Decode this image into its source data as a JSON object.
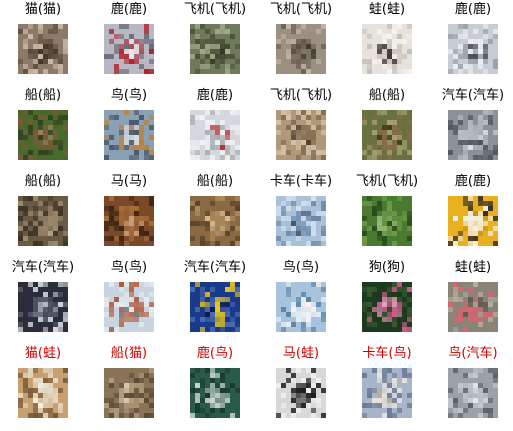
{
  "title": "",
  "colors": {
    "correct": "#000000",
    "wrong": "#d40000"
  },
  "rows": [
    [
      {
        "label": "猫(猫)",
        "correct": true,
        "subject": "cat",
        "palette": [
          "#8c7a68",
          "#5a4a3c",
          "#c9b8a4",
          "#3d3028"
        ]
      },
      {
        "label": "鹿(鹿)",
        "correct": true,
        "subject": "red truck",
        "palette": [
          "#b8b8c4",
          "#b0242e",
          "#6b6b78",
          "#e8e8ee"
        ]
      },
      {
        "label": "飞机(飞机)",
        "correct": true,
        "subject": "frog",
        "palette": [
          "#6e7a5a",
          "#4a5238",
          "#a8ac8c",
          "#2c301e"
        ]
      },
      {
        "label": "飞机(飞机)",
        "correct": true,
        "subject": "frog",
        "palette": [
          "#9c9080",
          "#6c6254",
          "#c4b8a8",
          "#3a342c"
        ]
      },
      {
        "label": "蛙(蛙)",
        "correct": true,
        "subject": "white dog",
        "palette": [
          "#e6e2dc",
          "#c8c0b8",
          "#f6f4f0",
          "#2a2420"
        ]
      },
      {
        "label": "鹿(鹿)",
        "correct": true,
        "subject": "white truck",
        "palette": [
          "#c8ccd4",
          "#9aa0ac",
          "#eceef2",
          "#4a4e56"
        ]
      }
    ],
    [
      {
        "label": "船(船)",
        "correct": true,
        "subject": "deer",
        "palette": [
          "#4a6a2c",
          "#7a5a38",
          "#2e4420",
          "#a08060"
        ]
      },
      {
        "label": "鸟(鸟)",
        "correct": true,
        "subject": "boat",
        "palette": [
          "#8aa0b4",
          "#c08030",
          "#4a5a6a",
          "#e0e4e8"
        ]
      },
      {
        "label": "鹿(鹿)",
        "correct": true,
        "subject": "white truck",
        "palette": [
          "#d4d8dc",
          "#a8aeb4",
          "#f0f2f4",
          "#c03030"
        ]
      },
      {
        "label": "飞机(飞机)",
        "correct": true,
        "subject": "frog",
        "palette": [
          "#b09878",
          "#806a50",
          "#d4c4a8",
          "#4a3c2c"
        ]
      },
      {
        "label": "船(船)",
        "correct": true,
        "subject": "deer",
        "palette": [
          "#6a7040",
          "#8a6a48",
          "#a4a070",
          "#3c3a22"
        ]
      },
      {
        "label": "汽车(汽车)",
        "correct": true,
        "subject": "grey car",
        "palette": [
          "#8c9098",
          "#b8bcc4",
          "#50545c",
          "#dde0e4"
        ]
      }
    ],
    [
      {
        "label": "船(船)",
        "correct": true,
        "subject": "deer",
        "palette": [
          "#6a5a44",
          "#9c8a6c",
          "#3c3226",
          "#c4b498"
        ]
      },
      {
        "label": "马(马)",
        "correct": true,
        "subject": "horse",
        "palette": [
          "#7a4a28",
          "#a86c3c",
          "#3c2414",
          "#c8a078"
        ]
      },
      {
        "label": "船(船)",
        "correct": true,
        "subject": "deer",
        "palette": [
          "#8a6a44",
          "#b08c5c",
          "#5a4428",
          "#d4bc94"
        ]
      },
      {
        "label": "卡车(卡车)",
        "correct": true,
        "subject": "airplane",
        "palette": [
          "#a8c0d8",
          "#6a8aa8",
          "#d4e0ec",
          "#3a4a5a"
        ]
      },
      {
        "label": "飞机(飞机)",
        "correct": true,
        "subject": "frog",
        "palette": [
          "#4a7a30",
          "#6c9a48",
          "#2a4a1c",
          "#98b878"
        ]
      },
      {
        "label": "鹿(鹿)",
        "correct": true,
        "subject": "yellow loader",
        "palette": [
          "#e8b020",
          "#f4f0e4",
          "#3a3024",
          "#c88c10"
        ]
      }
    ],
    [
      {
        "label": "汽车(汽车)",
        "correct": true,
        "subject": "dark car",
        "palette": [
          "#2a2e3a",
          "#5a5e6c",
          "#d8dce4",
          "#8a8e9c"
        ]
      },
      {
        "label": "鸟(鸟)",
        "correct": true,
        "subject": "boat",
        "palette": [
          "#c8d4e0",
          "#b0502c",
          "#e4ecf2",
          "#6a7078"
        ]
      },
      {
        "label": "汽车(汽车)",
        "correct": true,
        "subject": "yellow car",
        "palette": [
          "#1a3a8a",
          "#e8c820",
          "#4a6ab4",
          "#101c44"
        ]
      },
      {
        "label": "鸟(鸟)",
        "correct": true,
        "subject": "sailboat",
        "palette": [
          "#a8c4dc",
          "#e8eef4",
          "#5c84a8",
          "#f4f4f4"
        ]
      },
      {
        "label": "狗(狗)",
        "correct": true,
        "subject": "bird",
        "palette": [
          "#1e3a1e",
          "#d06090",
          "#3a5a30",
          "#e8a0bc"
        ]
      },
      {
        "label": "蛙(蛙)",
        "correct": true,
        "subject": "pink bird",
        "palette": [
          "#8a8478",
          "#e06070",
          "#b4aca0",
          "#5a544a"
        ]
      }
    ],
    [
      {
        "label": "猫(蛙)",
        "correct": false,
        "subject": "dog",
        "palette": [
          "#c8a070",
          "#e4d8c4",
          "#7a5a3a",
          "#f4f0e8"
        ]
      },
      {
        "label": "船(猫)",
        "correct": false,
        "subject": "cat",
        "palette": [
          "#8a7458",
          "#b49c7c",
          "#5a4a36",
          "#d8c8ac"
        ]
      },
      {
        "label": "鹿(鸟)",
        "correct": false,
        "subject": "boat",
        "palette": [
          "#2a5a4a",
          "#e0e4e0",
          "#1a3a30",
          "#a0b0a8"
        ]
      },
      {
        "label": "马(蛙)",
        "correct": false,
        "subject": "person",
        "palette": [
          "#d8d8d8",
          "#1a1a1a",
          "#f0f0f0",
          "#5a5a5a"
        ]
      },
      {
        "label": "卡车(鸟)",
        "correct": false,
        "subject": "ship",
        "palette": [
          "#a8b4c8",
          "#e8e4dc",
          "#6a7a94",
          "#c4a88c"
        ]
      },
      {
        "label": "鸟(汽车)",
        "correct": false,
        "subject": "grey car",
        "palette": [
          "#9ca0a8",
          "#c4c8d0",
          "#5c6068",
          "#e4e6ea"
        ]
      }
    ]
  ]
}
